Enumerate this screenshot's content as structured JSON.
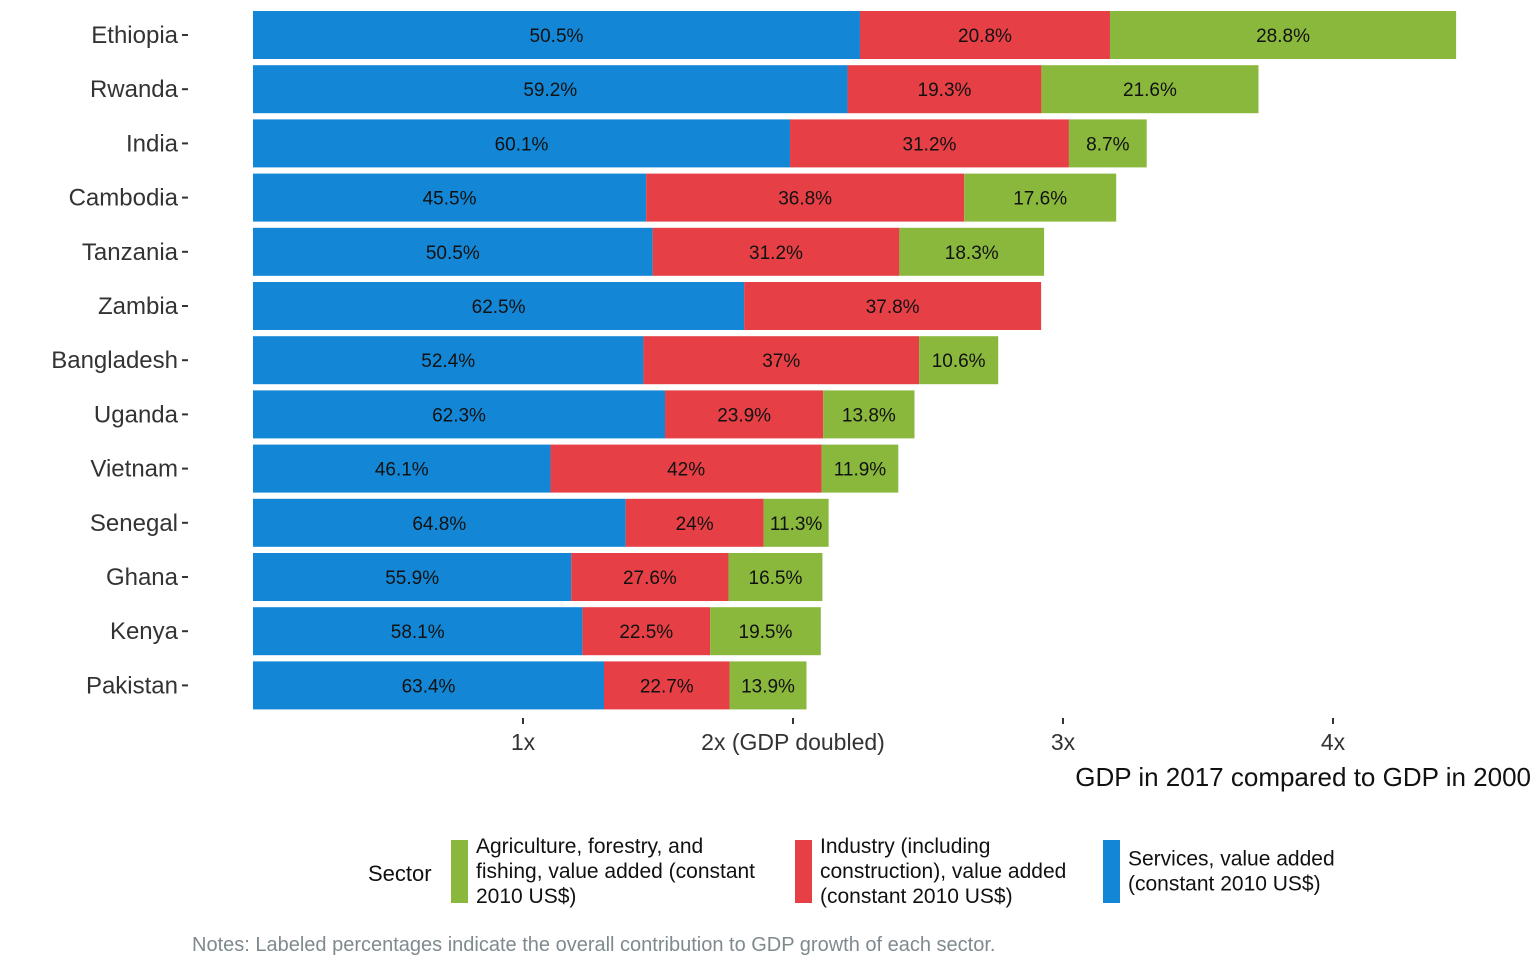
{
  "chart_data": {
    "type": "bar",
    "orientation": "horizontal",
    "stacked": true,
    "categories": [
      "Ethiopia",
      "Rwanda",
      "India",
      "Cambodia",
      "Tanzania",
      "Zambia",
      "Bangladesh",
      "Uganda",
      "Vietnam",
      "Senegal",
      "Ghana",
      "Kenya",
      "Pakistan"
    ],
    "totals": [
      4.45,
      3.72,
      3.31,
      3.2,
      2.93,
      2.91,
      2.76,
      2.45,
      2.39,
      2.13,
      2.11,
      2.1,
      2.05
    ],
    "series": [
      {
        "name": "Services, value added (constant 2010 US$)",
        "color": "#1387d6",
        "values": [
          2.248,
          2.202,
          1.989,
          1.456,
          1.48,
          1.819,
          1.446,
          1.526,
          1.102,
          1.38,
          1.179,
          1.22,
          1.3
        ],
        "labels": [
          "50.5%",
          "59.2%",
          "60.1%",
          "45.5%",
          "50.5%",
          "62.5%",
          "52.4%",
          "62.3%",
          "46.1%",
          "64.8%",
          "55.9%",
          "58.1%",
          "63.4%"
        ]
      },
      {
        "name": "Industry (including construction), value added (constant 2010 US$)",
        "color": "#e64046",
        "values": [
          0.926,
          0.718,
          1.033,
          1.178,
          0.914,
          1.1,
          1.021,
          0.586,
          1.004,
          0.511,
          0.582,
          0.473,
          0.465
        ],
        "labels": [
          "20.8%",
          "19.3%",
          "31.2%",
          "36.8%",
          "31.2%",
          "37.8%",
          "37%",
          "23.9%",
          "42%",
          "24%",
          "27.6%",
          "22.5%",
          "22.7%"
        ]
      },
      {
        "name": "Agriculture, forestry, and fishing, value added (constant 2010 US$)",
        "color": "#8ab83d",
        "values": [
          1.282,
          0.804,
          0.288,
          0.563,
          0.536,
          0.0,
          0.293,
          0.338,
          0.284,
          0.241,
          0.348,
          0.41,
          0.285
        ],
        "labels": [
          "28.8%",
          "21.6%",
          "8.7%",
          "17.6%",
          "18.3%",
          "",
          "10.6%",
          "13.8%",
          "11.9%",
          "11.3%",
          "16.5%",
          "19.5%",
          "13.9%"
        ]
      }
    ],
    "xlim": [
      0,
      4.45
    ],
    "x_ticks": [
      {
        "value": 1,
        "label": "1x"
      },
      {
        "value": 2,
        "label": "2x (GDP doubled)"
      },
      {
        "value": 3,
        "label": "3x"
      },
      {
        "value": 4,
        "label": "4x"
      }
    ],
    "xlabel": "GDP in 2017 compared to GDP in 2000",
    "ylabel": "",
    "grid": false,
    "legend": {
      "title": "Sector",
      "position": "bottom",
      "entries": [
        {
          "lines": [
            "Agriculture, forestry, and",
            "fishing, value added (constant",
            "2010 US$)"
          ],
          "color": "#8ab83d"
        },
        {
          "lines": [
            "Industry (including",
            "construction), value added",
            "(constant 2010 US$)"
          ],
          "color": "#e64046"
        },
        {
          "lines": [
            "Services, value added",
            "(constant 2010 US$)"
          ],
          "color": "#1387d6"
        }
      ]
    },
    "note": "Notes: Labeled percentages indicate the overall contribution to GDP growth of each sector."
  }
}
